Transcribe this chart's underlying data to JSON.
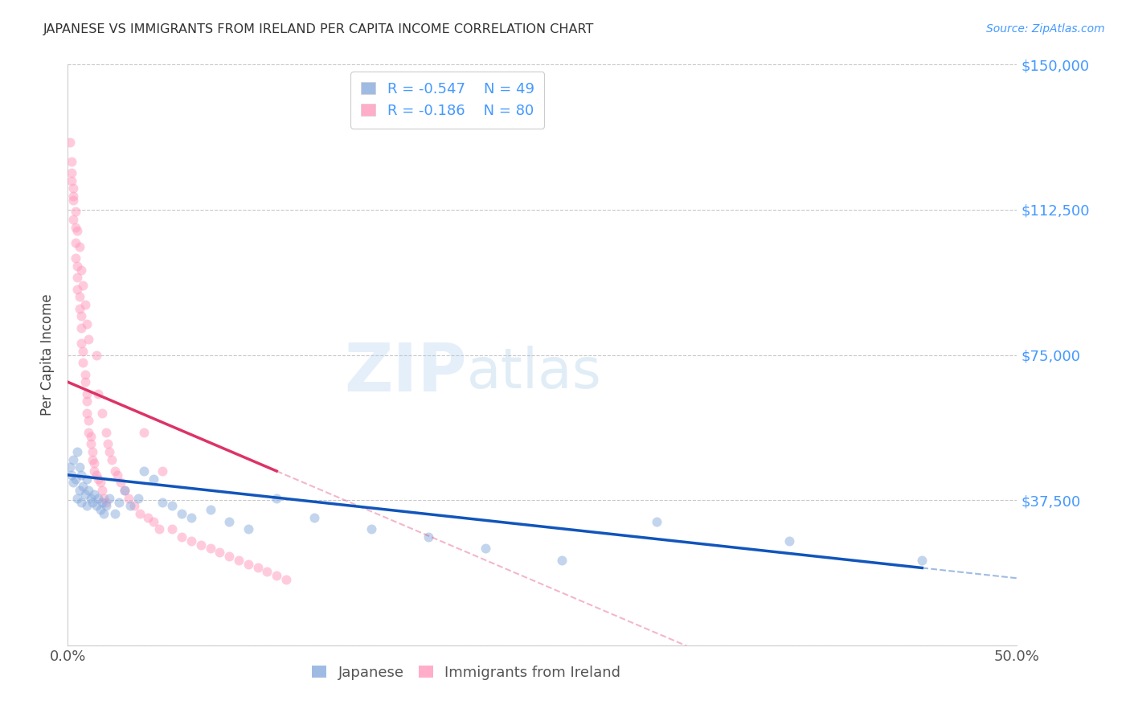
{
  "title": "JAPANESE VS IMMIGRANTS FROM IRELAND PER CAPITA INCOME CORRELATION CHART",
  "source": "Source: ZipAtlas.com",
  "ylabel": "Per Capita Income",
  "xlim": [
    0.0,
    0.5
  ],
  "ylim": [
    0,
    150000
  ],
  "yticks": [
    0,
    37500,
    75000,
    112500,
    150000
  ],
  "ytick_labels": [
    "",
    "$37,500",
    "$75,000",
    "$112,500",
    "$150,000"
  ],
  "xtick_positions": [
    0.0,
    0.1,
    0.2,
    0.3,
    0.4,
    0.5
  ],
  "xtick_labels": [
    "0.0%",
    "",
    "",
    "",
    "",
    "50.0%"
  ],
  "legend1_label": "Japanese",
  "legend2_label": "Immigrants from Ireland",
  "r1": -0.547,
  "n1": 49,
  "r2": -0.186,
  "n2": 80,
  "blue_color": "#88AADD",
  "pink_color": "#FF99BB",
  "blue_line_color": "#1155BB",
  "pink_line_color": "#DD3366",
  "axis_text_color": "#4499FF",
  "title_color": "#333333",
  "background_color": "#FFFFFF",
  "scatter_alpha": 0.5,
  "scatter_size": 75,
  "japanese_x": [
    0.001,
    0.002,
    0.003,
    0.003,
    0.004,
    0.005,
    0.005,
    0.006,
    0.006,
    0.007,
    0.007,
    0.008,
    0.009,
    0.01,
    0.01,
    0.011,
    0.012,
    0.013,
    0.014,
    0.015,
    0.016,
    0.017,
    0.018,
    0.019,
    0.02,
    0.022,
    0.025,
    0.027,
    0.03,
    0.033,
    0.037,
    0.04,
    0.045,
    0.05,
    0.055,
    0.06,
    0.065,
    0.075,
    0.085,
    0.095,
    0.11,
    0.13,
    0.16,
    0.19,
    0.22,
    0.26,
    0.31,
    0.38,
    0.45
  ],
  "japanese_y": [
    46000,
    44000,
    42000,
    48000,
    43000,
    50000,
    38000,
    46000,
    40000,
    44000,
    37000,
    41000,
    39000,
    43000,
    36000,
    40000,
    38000,
    37000,
    39000,
    36000,
    38000,
    35000,
    37000,
    34000,
    36000,
    38000,
    34000,
    37000,
    40000,
    36000,
    38000,
    45000,
    43000,
    37000,
    36000,
    34000,
    33000,
    35000,
    32000,
    30000,
    38000,
    33000,
    30000,
    28000,
    25000,
    22000,
    32000,
    27000,
    22000
  ],
  "ireland_x": [
    0.001,
    0.002,
    0.002,
    0.003,
    0.003,
    0.003,
    0.004,
    0.004,
    0.004,
    0.005,
    0.005,
    0.005,
    0.006,
    0.006,
    0.007,
    0.007,
    0.007,
    0.008,
    0.008,
    0.009,
    0.009,
    0.01,
    0.01,
    0.01,
    0.011,
    0.011,
    0.012,
    0.012,
    0.013,
    0.013,
    0.014,
    0.014,
    0.015,
    0.015,
    0.016,
    0.016,
    0.017,
    0.018,
    0.018,
    0.019,
    0.02,
    0.02,
    0.021,
    0.022,
    0.023,
    0.025,
    0.026,
    0.028,
    0.03,
    0.032,
    0.035,
    0.038,
    0.04,
    0.042,
    0.045,
    0.048,
    0.05,
    0.055,
    0.06,
    0.065,
    0.07,
    0.075,
    0.08,
    0.085,
    0.09,
    0.095,
    0.1,
    0.105,
    0.11,
    0.115,
    0.002,
    0.003,
    0.004,
    0.005,
    0.006,
    0.007,
    0.008,
    0.009,
    0.01,
    0.011
  ],
  "ireland_y": [
    130000,
    125000,
    120000,
    118000,
    115000,
    110000,
    108000,
    104000,
    100000,
    98000,
    95000,
    92000,
    90000,
    87000,
    85000,
    82000,
    78000,
    76000,
    73000,
    70000,
    68000,
    65000,
    63000,
    60000,
    58000,
    55000,
    54000,
    52000,
    50000,
    48000,
    47000,
    45000,
    44000,
    75000,
    43000,
    65000,
    42000,
    60000,
    40000,
    38000,
    55000,
    37000,
    52000,
    50000,
    48000,
    45000,
    44000,
    42000,
    40000,
    38000,
    36000,
    34000,
    55000,
    33000,
    32000,
    30000,
    45000,
    30000,
    28000,
    27000,
    26000,
    25000,
    24000,
    23000,
    22000,
    21000,
    20000,
    19000,
    18000,
    17000,
    122000,
    116000,
    112000,
    107000,
    103000,
    97000,
    93000,
    88000,
    83000,
    79000
  ]
}
